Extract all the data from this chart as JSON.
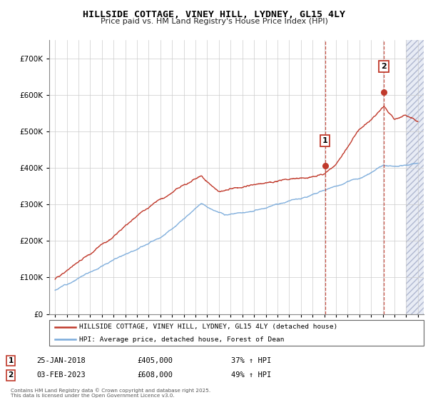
{
  "title": "HILLSIDE COTTAGE, VINEY HILL, LYDNEY, GL15 4LY",
  "subtitle": "Price paid vs. HM Land Registry's House Price Index (HPI)",
  "legend_line1": "HILLSIDE COTTAGE, VINEY HILL, LYDNEY, GL15 4LY (detached house)",
  "legend_line2": "HPI: Average price, detached house, Forest of Dean",
  "sale1_date": "25-JAN-2018",
  "sale1_price": "£405,000",
  "sale1_hpi": "37% ↑ HPI",
  "sale1_year": 2018.07,
  "sale1_value": 405000,
  "sale2_date": "03-FEB-2023",
  "sale2_price": "£608,000",
  "sale2_hpi": "49% ↑ HPI",
  "sale2_year": 2023.09,
  "sale2_value": 608000,
  "hpi_color": "#7aabdb",
  "price_color": "#c0392b",
  "ylim_min": 0,
  "ylim_max": 750000,
  "xlim_min": 1994.5,
  "xlim_max": 2026.5,
  "footer": "Contains HM Land Registry data © Crown copyright and database right 2025.\nThis data is licensed under the Open Government Licence v3.0."
}
